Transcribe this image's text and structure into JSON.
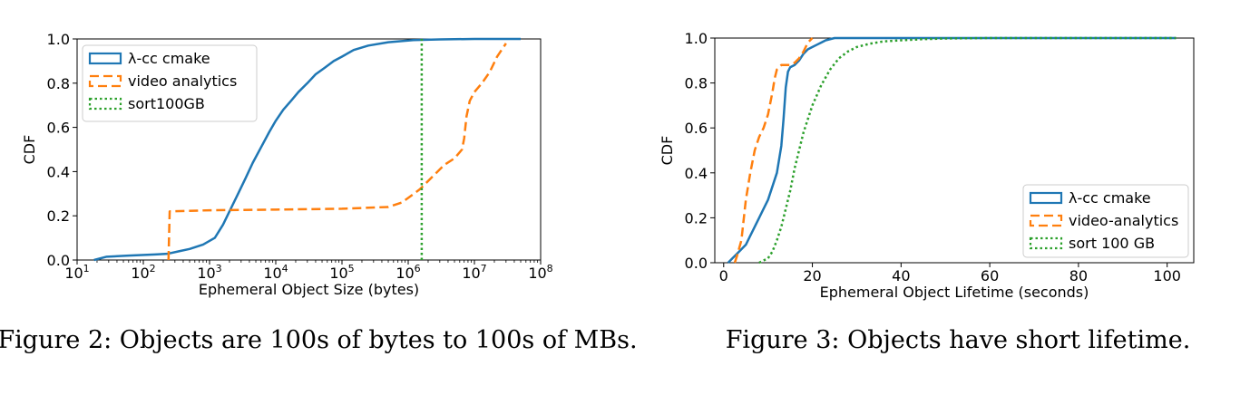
{
  "figures": [
    {
      "caption": "Figure 2: Objects are 100s of bytes to 100s of MBs.",
      "legend_labels": [
        "λ-cc cmake",
        "video analytics",
        "sort100GB"
      ]
    },
    {
      "caption": "Figure 3: Objects have short lifetime.",
      "legend_labels": [
        "λ-cc cmake",
        "video-analytics",
        "sort 100 GB"
      ]
    }
  ],
  "colors": {
    "series1": "#1f77b4",
    "series2": "#ff7f0e",
    "series3": "#2ca02c"
  },
  "chart_data": [
    {
      "type": "line",
      "xscale": "log",
      "xlabel": "Ephemeral Object Size (bytes)",
      "ylabel": "CDF",
      "xlim": [
        10,
        100000000
      ],
      "ylim": [
        0,
        1.0
      ],
      "xticks": [
        10,
        100,
        1000,
        10000,
        100000,
        1000000,
        10000000,
        100000000
      ],
      "yticks": [
        "0.0",
        "0.2",
        "0.4",
        "0.6",
        "0.8",
        "1.0"
      ],
      "legend": "top-left",
      "series": [
        {
          "name": "λ-cc cmake",
          "style": "solid",
          "x": [
            18,
            28,
            60,
            150,
            230,
            350,
            500,
            800,
            1200,
            1600,
            2000,
            2700,
            3500,
            4500,
            6000,
            8000,
            10000,
            13000,
            17000,
            22000,
            30000,
            40000,
            55000,
            75000,
            100000,
            150000,
            250000,
            500000,
            1200000,
            3000000,
            10000000,
            50000000
          ],
          "y": [
            0.0,
            0.015,
            0.02,
            0.025,
            0.028,
            0.04,
            0.05,
            0.07,
            0.1,
            0.16,
            0.22,
            0.3,
            0.37,
            0.44,
            0.51,
            0.58,
            0.63,
            0.68,
            0.72,
            0.76,
            0.8,
            0.84,
            0.87,
            0.9,
            0.92,
            0.95,
            0.97,
            0.985,
            0.995,
            0.998,
            1.0,
            1.0
          ]
        },
        {
          "name": "video analytics",
          "style": "dashed",
          "x": [
            240,
            250,
            1000,
            10000,
            100000,
            500000,
            800000,
            1100000,
            1500000,
            2200000,
            3500000,
            5000000,
            6500000,
            7000000,
            7600000,
            8500000,
            10000000,
            13000000,
            17000000,
            22000000,
            30000000
          ],
          "y": [
            0.0,
            0.22,
            0.225,
            0.228,
            0.232,
            0.24,
            0.26,
            0.29,
            0.32,
            0.37,
            0.43,
            0.46,
            0.5,
            0.55,
            0.65,
            0.72,
            0.76,
            0.8,
            0.85,
            0.92,
            0.98
          ]
        },
        {
          "name": "sort100GB",
          "style": "dotted",
          "x": [
            1600000,
            1600000,
            1600000
          ],
          "y": [
            0.0,
            0.5,
            1.0
          ]
        }
      ]
    },
    {
      "type": "line",
      "xlabel": "Ephemeral Object Lifetime (seconds)",
      "ylabel": "CDF",
      "xlim": [
        -2,
        106
      ],
      "ylim": [
        0,
        1.0
      ],
      "xticks": [
        0,
        20,
        40,
        60,
        80,
        100
      ],
      "yticks": [
        "0.0",
        "0.2",
        "0.4",
        "0.6",
        "0.8",
        "1.0"
      ],
      "legend": "bottom-right",
      "series": [
        {
          "name": "λ-cc cmake",
          "style": "solid",
          "x": [
            1,
            2,
            3,
            4,
            5,
            6,
            7,
            8,
            9,
            10,
            11,
            12,
            13,
            13.5,
            14,
            14.5,
            15,
            16,
            17,
            18,
            19,
            20,
            21,
            22,
            23,
            25,
            30,
            40,
            60,
            80,
            100,
            102
          ],
          "y": [
            0.0,
            0.02,
            0.04,
            0.06,
            0.08,
            0.12,
            0.16,
            0.2,
            0.24,
            0.28,
            0.34,
            0.4,
            0.52,
            0.64,
            0.78,
            0.85,
            0.87,
            0.88,
            0.9,
            0.93,
            0.95,
            0.96,
            0.97,
            0.98,
            0.99,
            1.0,
            1.0,
            1.0,
            1.0,
            1.0,
            1.0,
            1.0
          ]
        },
        {
          "name": "video-analytics",
          "style": "dashed",
          "x": [
            2.5,
            3,
            4,
            5,
            6,
            7,
            8,
            9,
            10,
            11,
            11.5,
            12,
            13,
            14,
            15,
            16,
            17,
            18,
            19,
            20
          ],
          "y": [
            0.0,
            0.03,
            0.1,
            0.28,
            0.4,
            0.5,
            0.56,
            0.6,
            0.66,
            0.76,
            0.82,
            0.86,
            0.88,
            0.88,
            0.88,
            0.89,
            0.91,
            0.94,
            0.98,
            1.0
          ]
        },
        {
          "name": "sort 100 GB",
          "style": "dotted",
          "x": [
            8,
            10,
            11,
            12,
            13,
            14,
            15,
            16,
            17,
            18,
            19,
            20,
            22,
            24,
            26,
            28,
            30,
            33,
            36,
            40,
            45,
            50,
            60,
            80,
            100,
            102
          ],
          "y": [
            0.0,
            0.02,
            0.05,
            0.1,
            0.16,
            0.24,
            0.32,
            0.42,
            0.5,
            0.58,
            0.64,
            0.7,
            0.79,
            0.86,
            0.91,
            0.94,
            0.96,
            0.975,
            0.985,
            0.99,
            0.995,
            0.998,
            1.0,
            1.0,
            1.0,
            1.0
          ]
        }
      ]
    }
  ]
}
